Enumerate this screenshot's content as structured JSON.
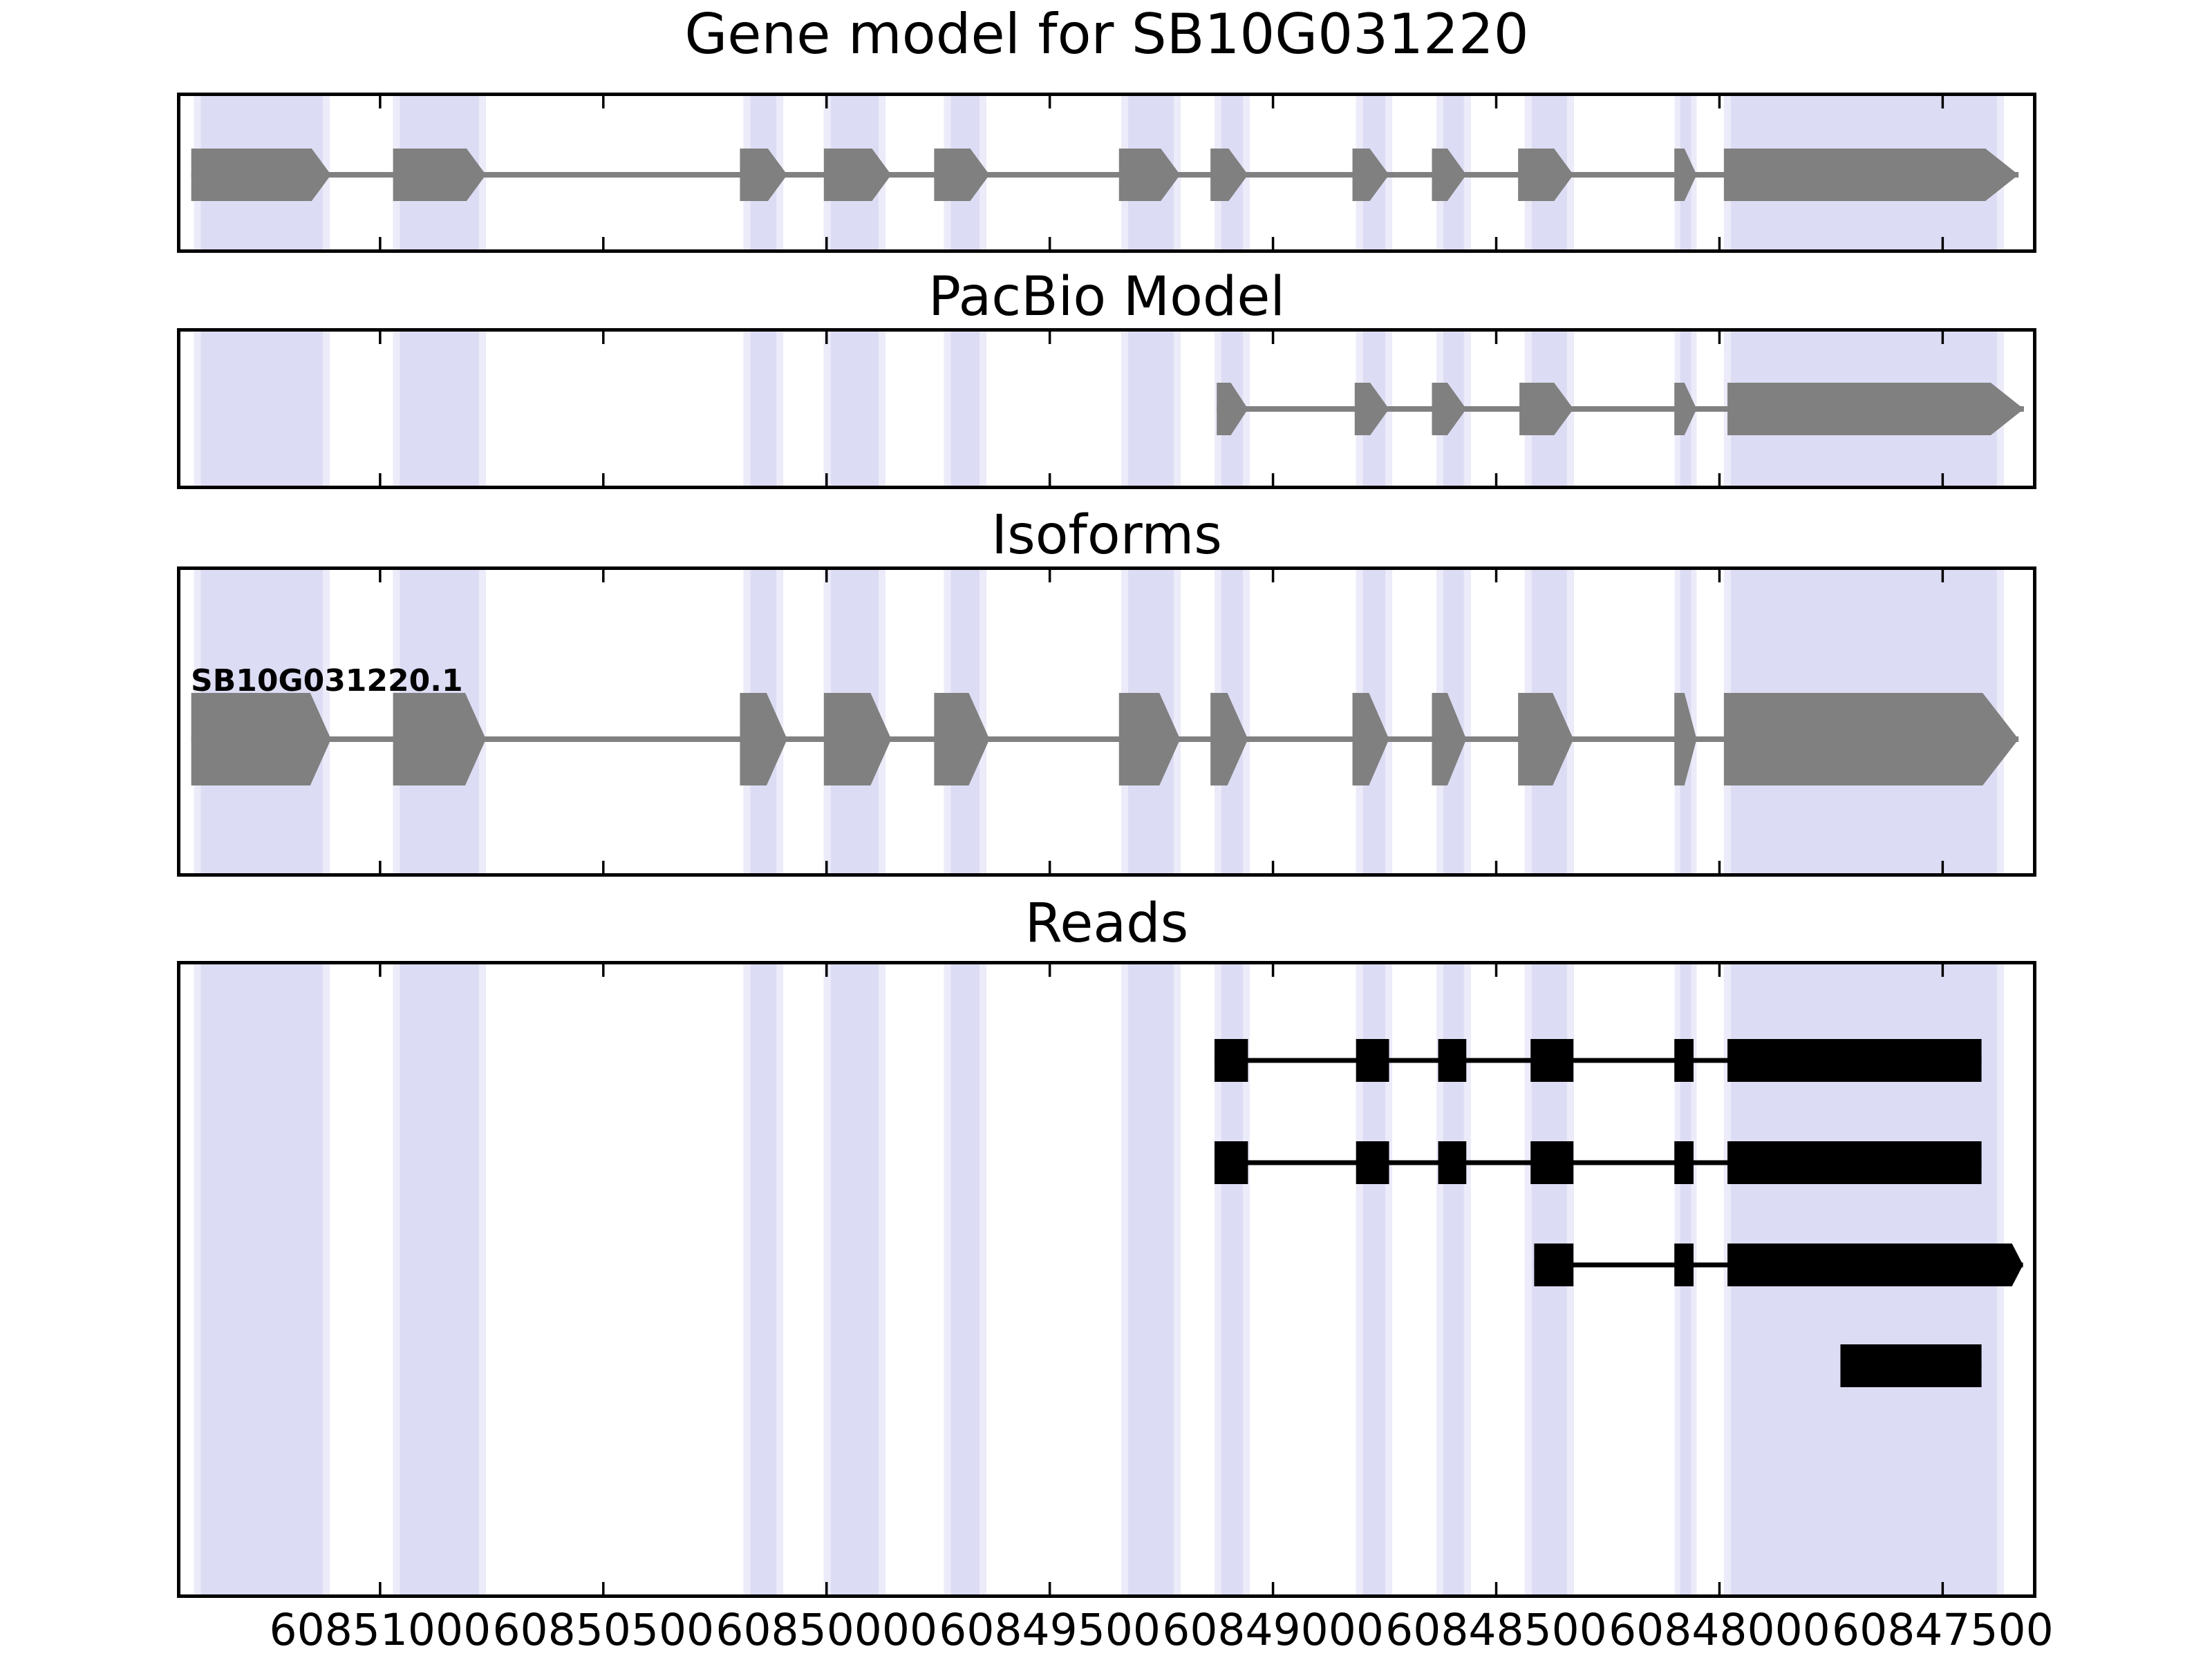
{
  "chart_data": {
    "type": "gene-model-tracks",
    "title": "Gene model for SB10G031220",
    "x_axis": {
      "range_bp": [
        60851455,
        60847290
      ],
      "reversed": true,
      "tick_values": [
        60851000,
        60850500,
        60850000,
        60849500,
        60849000,
        60848500,
        60848000,
        60847500
      ],
      "tick_labels": [
        "60851000",
        "60850500",
        "60850000",
        "60849500",
        "60849000",
        "60848500",
        "60848000",
        "60847500"
      ]
    },
    "colors": {
      "model_feature": "#808080",
      "read_feature": "#000000",
      "highlight_band": "#dcdcf4",
      "highlight_band_edge": "#ecebf9",
      "panel_border": "#000000",
      "tick": "#000000",
      "background": "#ffffff"
    },
    "highlight_regions_bp": [
      [
        60851417,
        60851113
      ],
      [
        60850971,
        60850763
      ],
      [
        60850186,
        60850097
      ],
      [
        60850006,
        60849868
      ],
      [
        60849737,
        60849642
      ],
      [
        60849340,
        60849207
      ],
      [
        60849131,
        60849052
      ],
      [
        60848814,
        60848733
      ],
      [
        60848634,
        60848557
      ],
      [
        60848436,
        60848326
      ],
      [
        60848100,
        60848051
      ],
      [
        60847990,
        60847363
      ]
    ],
    "tracks": [
      {
        "id": "gene-model",
        "title": "Gene model for SB10G031220",
        "color": "#808080",
        "features": [
          {
            "label": "",
            "exons": [
              [
                60851423,
                60851110
              ],
              [
                60850971,
                60850763
              ],
              [
                60850194,
                60850088
              ],
              [
                60850006,
                60849855
              ],
              [
                60849759,
                60849635
              ],
              [
                60849345,
                60849208
              ],
              [
                60849140,
                60849056
              ],
              [
                60848822,
                60848740
              ],
              [
                60848644,
                60848567
              ],
              [
                60848451,
                60848327
              ],
              [
                60848101,
                60848051
              ],
              [
                60847990,
                60847330
              ]
            ]
          }
        ]
      },
      {
        "id": "pacbio-model",
        "title": "PacBio Model",
        "color": "#808080",
        "features": [
          {
            "label": "",
            "exons": [
              [
                60849126,
                60849056
              ],
              [
                60848817,
                60848740
              ],
              [
                60848644,
                60848567
              ],
              [
                60848448,
                60848327
              ],
              [
                60848101,
                60848051
              ],
              [
                60847982,
                60847318
              ]
            ]
          }
        ]
      },
      {
        "id": "isoforms",
        "title": "Isoforms",
        "color": "#808080",
        "features": [
          {
            "label": "SB10G031220.1",
            "exons": [
              [
                60851423,
                60851110
              ],
              [
                60850971,
                60850763
              ],
              [
                60850194,
                60850088
              ],
              [
                60850006,
                60849855
              ],
              [
                60849759,
                60849635
              ],
              [
                60849345,
                60849208
              ],
              [
                60849140,
                60849056
              ],
              [
                60848822,
                60848740
              ],
              [
                60848644,
                60848567
              ],
              [
                60848451,
                60848327
              ],
              [
                60848101,
                60848051
              ],
              [
                60847990,
                60847330
              ]
            ]
          }
        ]
      },
      {
        "id": "reads",
        "title": "Reads",
        "color": "#000000",
        "features": [
          {
            "label": "",
            "exons": [
              [
                60849131,
                60849056
              ],
              [
                60848814,
                60848740
              ],
              [
                60848630,
                60848567
              ],
              [
                60848423,
                60848327
              ],
              [
                60848101,
                60848058
              ],
              [
                60847982,
                60847413
              ]
            ]
          },
          {
            "label": "",
            "exons": [
              [
                60849131,
                60849056
              ],
              [
                60848814,
                60848740
              ],
              [
                60848630,
                60848567
              ],
              [
                60848423,
                60848327
              ],
              [
                60848101,
                60848058
              ],
              [
                60847982,
                60847413
              ]
            ]
          },
          {
            "label": "",
            "arrow": true,
            "exons": [
              [
                60848415,
                60848327
              ],
              [
                60848101,
                60848058
              ],
              [
                60847982,
                60847320
              ]
            ]
          },
          {
            "label": "",
            "exons": [
              [
                60847729,
                60847413
              ]
            ]
          }
        ]
      }
    ]
  }
}
